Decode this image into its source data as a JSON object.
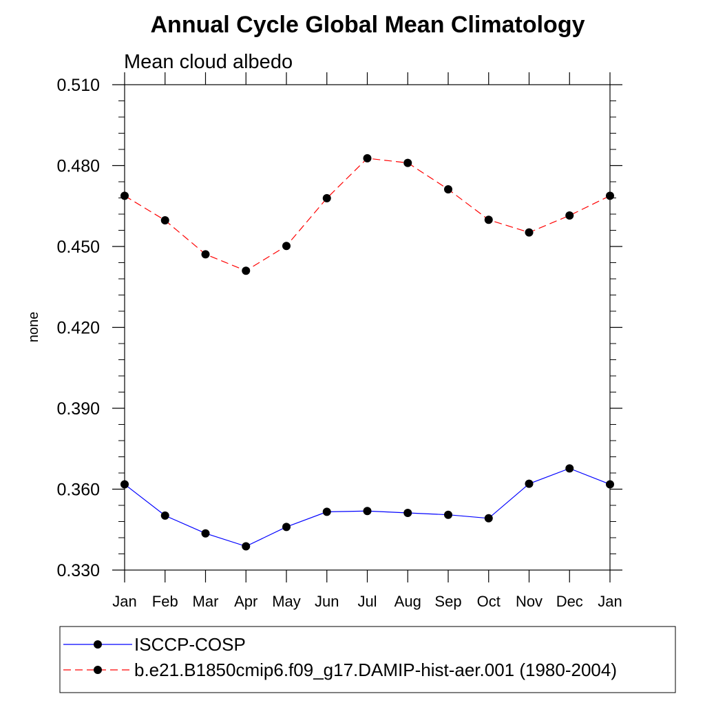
{
  "chart_data": {
    "type": "line",
    "title": "Annual Cycle Global Mean Climatology",
    "subtitle": "Mean cloud albedo",
    "xlabel": "",
    "ylabel": "none",
    "categories": [
      "Jan",
      "Feb",
      "Mar",
      "Apr",
      "May",
      "Jun",
      "Jul",
      "Aug",
      "Sep",
      "Oct",
      "Nov",
      "Dec",
      "Jan"
    ],
    "ylim": [
      0.33,
      0.51
    ],
    "yticks": [
      "0.330",
      "0.360",
      "0.390",
      "0.420",
      "0.450",
      "0.480",
      "0.510"
    ],
    "series": [
      {
        "name": "ISCCP-COSP",
        "color": "#0000ff",
        "dash": "solid",
        "marker": "filled-circle",
        "values": [
          0.3618,
          0.3502,
          0.3436,
          0.3388,
          0.346,
          0.3516,
          0.3519,
          0.3512,
          0.3505,
          0.3492,
          0.362,
          0.3677,
          0.3618
        ]
      },
      {
        "name": "b.e21.B1850cmip6.f09_g17.DAMIP-hist-aer.001 (1980-2004)",
        "color": "#ff0000",
        "dash": "dashed",
        "marker": "filled-circle",
        "values": [
          0.4688,
          0.4597,
          0.4471,
          0.441,
          0.4502,
          0.4679,
          0.4827,
          0.481,
          0.4712,
          0.4599,
          0.4552,
          0.4615,
          0.4688
        ]
      }
    ],
    "legend_position": "bottom"
  }
}
